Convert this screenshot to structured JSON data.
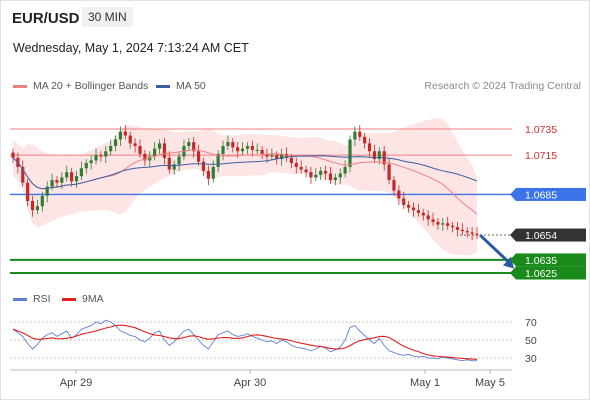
{
  "header": {
    "symbol": "EUR/USD",
    "timeframe": "30 MIN",
    "datetime": "Wednesday, May 1, 2024 7:13:24 AM CET"
  },
  "legend": {
    "ma20": "MA 20 + Bollinger Bands",
    "ma50": "MA 50",
    "rsi": "RSI",
    "ma9": "9MA"
  },
  "credit": "Research © 2024 Trading Central",
  "colors": {
    "ma20": "#f08080",
    "ma50": "#3a5f9e",
    "bollinger_fill": "#fde0e0",
    "resistance": "#f08080",
    "pivot": "#3b73e8",
    "support": "#1a8a1a",
    "last_price": "#333333",
    "arrow": "#2a5aa0",
    "rsi": "#5b7fd9",
    "rsi_ma": "#e02020",
    "candle_up": "#2e7d32",
    "candle_down": "#c62828"
  },
  "chart_data": [
    {
      "type": "candlestick",
      "x_ticks": [
        "Apr 29",
        "Apr 30",
        "May 1",
        "May 5"
      ],
      "levels": [
        {
          "value": 1.0735,
          "label": "1.0735",
          "kind": "resistance"
        },
        {
          "value": 1.0715,
          "label": "1.0715",
          "kind": "resistance"
        },
        {
          "value": 1.0685,
          "label": "1.0685",
          "kind": "pivot"
        },
        {
          "value": 1.0654,
          "label": "1.0654",
          "kind": "last"
        },
        {
          "value": 1.0635,
          "label": "1.0635",
          "kind": "support"
        },
        {
          "value": 1.0625,
          "label": "1.0625",
          "kind": "support"
        }
      ],
      "close_path": [
        1.0713,
        1.0706,
        1.0694,
        1.068,
        1.0673,
        1.0676,
        1.0684,
        1.0691,
        1.0696,
        1.0694,
        1.0698,
        1.0702,
        1.0695,
        1.0699,
        1.0705,
        1.0709,
        1.0711,
        1.0715,
        1.0714,
        1.0718,
        1.0722,
        1.0727,
        1.0733,
        1.073,
        1.0724,
        1.0722,
        1.0716,
        1.0711,
        1.0714,
        1.072,
        1.0724,
        1.0713,
        1.0704,
        1.0708,
        1.0714,
        1.0722,
        1.0725,
        1.0718,
        1.071,
        1.0703,
        1.0697,
        1.0706,
        1.0716,
        1.0722,
        1.0725,
        1.0721,
        1.0718,
        1.072,
        1.0722,
        1.0719,
        1.0719,
        1.0716,
        1.0714,
        1.0715,
        1.0712,
        1.0716,
        1.0713,
        1.0709,
        1.0706,
        1.0704,
        1.0702,
        1.0698,
        1.07,
        1.0703,
        1.0701,
        1.0696,
        1.0698,
        1.0701,
        1.0706,
        1.0727,
        1.0733,
        1.0729,
        1.0724,
        1.0718,
        1.0712,
        1.0718,
        1.0708,
        1.0696,
        1.0688,
        1.0682,
        1.0677,
        1.0675,
        1.0673,
        1.0671,
        1.0669,
        1.0666,
        1.0664,
        1.0662,
        1.0663,
        1.0661,
        1.066,
        1.0658,
        1.0657,
        1.0656,
        1.0655,
        1.0654
      ],
      "projection": {
        "from": 1.0654,
        "to": 1.063
      }
    },
    {
      "type": "line",
      "name": "RSI",
      "y_ticks": [
        70,
        50,
        30
      ],
      "ylim": [
        20,
        80
      ],
      "rsi": [
        62,
        58,
        54,
        46,
        40,
        45,
        52,
        56,
        58,
        54,
        57,
        60,
        52,
        56,
        62,
        64,
        66,
        70,
        68,
        72,
        70,
        66,
        60,
        58,
        55,
        54,
        50,
        48,
        52,
        58,
        60,
        50,
        44,
        48,
        54,
        60,
        62,
        56,
        50,
        44,
        40,
        48,
        56,
        58,
        60,
        56,
        54,
        55,
        57,
        54,
        52,
        50,
        48,
        49,
        46,
        50,
        48,
        44,
        42,
        41,
        40,
        38,
        40,
        43,
        41,
        37,
        39,
        42,
        50,
        64,
        66,
        60,
        55,
        50,
        46,
        52,
        44,
        38,
        36,
        34,
        33,
        34,
        32,
        31,
        32,
        30,
        30,
        29,
        31,
        30,
        29,
        28,
        27,
        28,
        27,
        27
      ]
    }
  ]
}
